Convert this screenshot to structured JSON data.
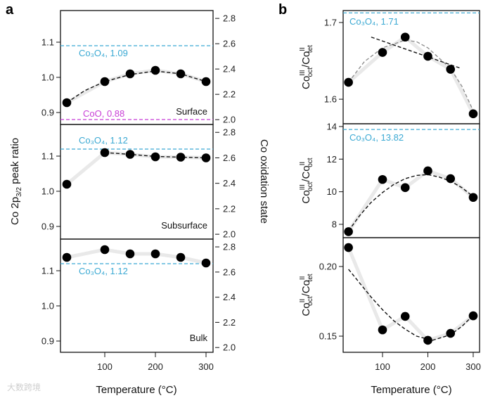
{
  "chart_data": {
    "type": "scatter",
    "x": [
      25,
      100,
      150,
      200,
      250,
      300
    ],
    "xlabel": "Temperature (°C)",
    "xticks": [
      100,
      200,
      300
    ],
    "colors": {
      "co3o4": "#3ba9d3",
      "coo": "#c83fd6",
      "points": "#000000",
      "band": "#e9e9e9",
      "fit": "#111111",
      "fit_grey": "#8a8a8a"
    },
    "panel_labels": [
      "a",
      "b"
    ],
    "a": {
      "ylabel": "Co 2p3/2 peak ratio",
      "ylabel_parts": [
        "Co 2p",
        "3/2",
        " peak ratio"
      ],
      "y2label": "Co oxidation state",
      "xlim": [
        12.5,
        313.9
      ],
      "y2lim": [
        1.962,
        2.862
      ],
      "y2ticks": [
        2.0,
        2.2,
        2.4,
        2.6,
        2.8
      ],
      "panels": [
        {
          "name": "Surface",
          "ylim": [
            0.866,
            1.19
          ],
          "yticks": [
            0.9,
            1.0,
            1.1
          ],
          "values": [
            0.928,
            0.988,
            1.01,
            1.02,
            1.01,
            0.988
          ],
          "fit": [
            [
              25,
              0.928
            ],
            [
              60,
              0.962
            ],
            [
              100,
              0.988
            ],
            [
              150,
              1.008
            ],
            [
              200,
              1.018
            ],
            [
              250,
              1.01
            ],
            [
              300,
              0.988
            ]
          ],
          "references": [
            {
              "label": "Co₃O₄, 1.09",
              "value": 1.09,
              "kind": "co3o4"
            },
            {
              "label": "CoO, 0.88",
              "value": 0.88,
              "kind": "coo"
            }
          ]
        },
        {
          "name": "Subsurface",
          "ylim": [
            0.864,
            1.19
          ],
          "yticks": [
            0.9,
            1.0,
            1.1
          ],
          "values": [
            1.02,
            1.11,
            1.105,
            1.098,
            1.097,
            1.095
          ],
          "fit": [
            [
              100,
              1.11
            ],
            [
              150,
              1.105
            ],
            [
              200,
              1.099
            ],
            [
              250,
              1.097
            ],
            [
              300,
              1.095
            ]
          ],
          "references": [
            {
              "label": "Co₃O₄, 1.12",
              "value": 1.12,
              "kind": "co3o4"
            }
          ]
        },
        {
          "name": "Bulk",
          "ylim": [
            0.868,
            1.19
          ],
          "yticks": [
            0.9,
            1.0,
            1.1
          ],
          "values": [
            1.138,
            1.16,
            1.148,
            1.148,
            1.138,
            1.122
          ],
          "fit": [],
          "references": [
            {
              "label": "Co₃O₄, 1.12",
              "value": 1.12,
              "kind": "co3o4"
            }
          ]
        }
      ]
    },
    "b": {
      "xlim": [
        13.2,
        314
      ],
      "panels": [
        {
          "ylabel": "CoIIIoct/CoIItet",
          "ylabel_parts": {
            "num_sup": "III",
            "num_sub": "oct",
            "den_sup": "II",
            "den_sub": "tet"
          },
          "ylim": [
            1.568,
            1.7156
          ],
          "yticks": [
            1.6,
            1.7
          ],
          "tick_format": 1,
          "values": [
            1.622,
            1.661,
            1.681,
            1.656,
            1.639,
            1.581
          ],
          "fit_grey": [
            [
              25,
              1.622
            ],
            [
              60,
              1.649
            ],
            [
              100,
              1.667
            ],
            [
              150,
              1.677
            ],
            [
              175,
              1.675
            ],
            [
              200,
              1.667
            ],
            [
              250,
              1.64
            ],
            [
              275,
              1.617
            ],
            [
              300,
              1.585
            ]
          ],
          "fit": [
            [
              75,
              1.681
            ],
            [
              274,
              1.64
            ]
          ],
          "references": [
            {
              "label": "Co₃O₄, 1.71",
              "value": 1.7125,
              "kind": "co3o4"
            }
          ]
        },
        {
          "ylabel": "CoIIIoct/CoIIoct",
          "ylabel_parts": {
            "num_sup": "III",
            "num_sub": "oct",
            "den_sup": "II",
            "den_sub": "oct"
          },
          "ylim": [
            7.18,
            14.17
          ],
          "yticks": [
            8,
            10,
            12,
            14
          ],
          "tick_format": 0,
          "values": [
            7.55,
            10.75,
            10.25,
            11.28,
            10.8,
            9.65
          ],
          "fit": [
            [
              25,
              7.6
            ],
            [
              50,
              8.55
            ],
            [
              75,
              9.35
            ],
            [
              100,
              9.95
            ],
            [
              125,
              10.45
            ],
            [
              150,
              10.8
            ],
            [
              175,
              11.0
            ],
            [
              200,
              11.05
            ],
            [
              225,
              10.9
            ],
            [
              250,
              10.65
            ],
            [
              275,
              10.25
            ],
            [
              300,
              9.7
            ]
          ],
          "references": [
            {
              "label": "Co₃O₄, 13.82",
              "value": 13.82,
              "kind": "co3o4"
            }
          ]
        },
        {
          "ylabel": "CoIIoct/CoIItet",
          "ylabel_parts": {
            "num_sup": "II",
            "num_sub": "oct",
            "den_sup": "II",
            "den_sub": "tet"
          },
          "ylim": [
            0.1384,
            0.2207
          ],
          "yticks": [
            0.15,
            0.2
          ],
          "tick_format": 2,
          "values": [
            0.2136,
            0.1545,
            0.1642,
            0.147,
            0.152,
            0.1646
          ],
          "fit": [
            [
              25,
              0.198
            ],
            [
              50,
              0.188
            ],
            [
              75,
              0.178
            ],
            [
              100,
              0.169
            ],
            [
              125,
              0.161
            ],
            [
              150,
              0.155
            ],
            [
              175,
              0.15
            ],
            [
              210,
              0.147
            ],
            [
              250,
              0.151
            ],
            [
              275,
              0.157
            ],
            [
              300,
              0.165
            ]
          ],
          "references": []
        }
      ]
    }
  },
  "watermark": "大数跨境"
}
